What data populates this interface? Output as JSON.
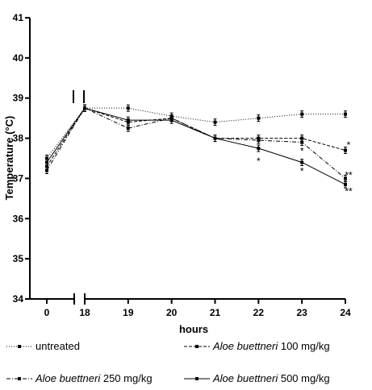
{
  "chart_data": {
    "type": "line",
    "xlabel": "hours",
    "ylabel": "Temperature (°C)",
    "ylim": [
      34,
      41
    ],
    "yticks": [
      "34",
      "35",
      "36",
      "37",
      "38",
      "39",
      "40",
      "41"
    ],
    "xticks": [
      "0",
      "18",
      "19",
      "20",
      "21",
      "22",
      "23",
      "24"
    ],
    "x_axis_break": "between 0 and 18",
    "x": [
      0,
      18,
      19,
      20,
      21,
      22,
      23,
      24
    ],
    "series": [
      {
        "name": "untreated",
        "italic_part": "",
        "dose": "",
        "style": "dotted",
        "values": [
          37.5,
          38.75,
          38.75,
          38.55,
          38.4,
          38.5,
          38.6,
          38.6
        ]
      },
      {
        "name": "Aloe buettneri 100 mg/kg",
        "italic_part": "Aloe buettneri",
        "dose": " 100 mg/kg",
        "style": "dashed",
        "values": [
          37.3,
          38.75,
          38.4,
          38.5,
          38.0,
          38.0,
          38.0,
          37.7
        ]
      },
      {
        "name": "Aloe buettneri 250 mg/kg",
        "italic_part": "Aloe buettneri",
        "dose": " 250 mg/kg",
        "style": "dashdot",
        "values": [
          37.2,
          38.75,
          38.25,
          38.5,
          38.0,
          37.95,
          37.9,
          37.0
        ]
      },
      {
        "name": "Aloe buettneri 500 mg/kg",
        "italic_part": "Aloe buettneri",
        "dose": " 500 mg/kg",
        "style": "solid",
        "values": [
          37.4,
          38.75,
          38.45,
          38.45,
          38.0,
          37.75,
          37.4,
          36.85
        ]
      }
    ],
    "annotations": [
      {
        "x": 22,
        "y": 37.45,
        "text": "*"
      },
      {
        "x": 23,
        "y": 37.7,
        "text": "*"
      },
      {
        "x": 23,
        "y": 37.2,
        "text": "*"
      },
      {
        "x": 24,
        "y": 37.85,
        "text": "*"
      },
      {
        "x": 24,
        "y": 37.1,
        "text": "**"
      },
      {
        "x": 24,
        "y": 36.7,
        "text": "**"
      }
    ]
  }
}
